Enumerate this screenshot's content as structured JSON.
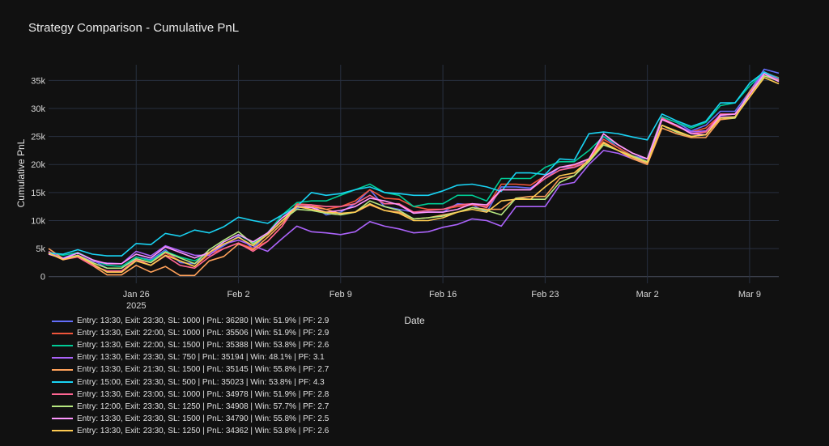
{
  "chart_data": {
    "type": "line",
    "title": "Strategy Comparison - Cumulative PnL",
    "xlabel": "Date",
    "ylabel": "Cumulative PnL",
    "ylim": [
      -1200,
      37800
    ],
    "y_ticks": [
      0,
      5000,
      10000,
      15000,
      20000,
      25000,
      30000,
      35000
    ],
    "y_tick_labels": [
      "0",
      "5k",
      "10k",
      "15k",
      "20k",
      "25k",
      "30k",
      "35k"
    ],
    "x_ticks": [
      "2025-01-26",
      "2025-02-02",
      "2025-02-09",
      "2025-02-16",
      "2025-02-23",
      "2025-03-02",
      "2025-03-09"
    ],
    "x_tick_labels": [
      "Jan 26",
      "Feb 2",
      "Feb 9",
      "Feb 16",
      "Feb 23",
      "Mar 2",
      "Mar 9"
    ],
    "x_tick_sublabel": "2025",
    "grid": true,
    "legend_position": "bottom-left",
    "x": [
      "2025-01-20",
      "2025-01-21",
      "2025-01-22",
      "2025-01-23",
      "2025-01-24",
      "2025-01-25",
      "2025-01-26",
      "2025-01-27",
      "2025-01-28",
      "2025-01-29",
      "2025-01-30",
      "2025-01-31",
      "2025-02-01",
      "2025-02-02",
      "2025-02-03",
      "2025-02-04",
      "2025-02-05",
      "2025-02-06",
      "2025-02-07",
      "2025-02-08",
      "2025-02-09",
      "2025-02-10",
      "2025-02-11",
      "2025-02-12",
      "2025-02-13",
      "2025-02-14",
      "2025-02-15",
      "2025-02-16",
      "2025-02-17",
      "2025-02-18",
      "2025-02-19",
      "2025-02-20",
      "2025-02-21",
      "2025-02-22",
      "2025-02-23",
      "2025-02-24",
      "2025-02-25",
      "2025-02-26",
      "2025-02-27",
      "2025-02-28",
      "2025-03-01",
      "2025-03-02",
      "2025-03-03",
      "2025-03-04",
      "2025-03-05",
      "2025-03-06",
      "2025-03-07",
      "2025-03-08",
      "2025-03-09",
      "2025-03-10",
      "2025-03-11"
    ],
    "series": [
      {
        "name": "Entry: 13:30, Exit: 23:30, SL: 1000 | PnL: 36280 | Win: 51.9% | PF: 2.9",
        "color": "#636efa",
        "values": [
          4200,
          3300,
          4300,
          3000,
          1500,
          1500,
          3500,
          3000,
          4800,
          2500,
          2300,
          4000,
          5500,
          7200,
          5000,
          7800,
          10500,
          12200,
          12800,
          11000,
          11500,
          13000,
          15500,
          12500,
          12000,
          11500,
          11500,
          11500,
          13000,
          12800,
          11500,
          16000,
          16000,
          15800,
          17500,
          19500,
          19500,
          21000,
          25000,
          23000,
          21500,
          21000,
          28500,
          27500,
          26000,
          27000,
          29500,
          29500,
          33000,
          37000,
          36300
        ]
      },
      {
        "name": "Entry: 13:30, Exit: 22:00, SL: 1000 | PnL: 35506 | Win: 51.9% | PF: 2.9",
        "color": "#ef553b",
        "values": [
          4500,
          3200,
          3500,
          2000,
          1000,
          800,
          3000,
          2500,
          4200,
          2800,
          1800,
          4000,
          5000,
          6000,
          5000,
          6300,
          9000,
          13000,
          12800,
          12000,
          12500,
          13500,
          15500,
          14000,
          13800,
          12500,
          12000,
          12000,
          12500,
          12800,
          12500,
          16500,
          16500,
          16300,
          18000,
          19500,
          19800,
          21000,
          24500,
          23000,
          21500,
          20500,
          28000,
          26800,
          25800,
          26500,
          28800,
          29000,
          32000,
          36300,
          35500
        ]
      },
      {
        "name": "Entry: 13:30, Exit: 22:00, SL: 1500 | PnL: 35388 | Win: 53.8% | PF: 2.6",
        "color": "#00cc96",
        "values": [
          4300,
          3800,
          4300,
          3000,
          2000,
          1800,
          3500,
          2800,
          4500,
          3500,
          2800,
          4300,
          6200,
          7500,
          6000,
          7800,
          11000,
          13200,
          13500,
          13500,
          14500,
          15500,
          16500,
          15000,
          14500,
          12500,
          13000,
          13000,
          14500,
          14500,
          13500,
          17500,
          17500,
          17500,
          19500,
          20500,
          20500,
          22500,
          25000,
          23500,
          22000,
          21000,
          28500,
          27500,
          26500,
          27500,
          30500,
          31000,
          34000,
          36500,
          35400
        ]
      },
      {
        "name": "Entry: 13:30, Exit: 23:30, SL: 750 | PnL: 35194 | Win: 48.1% | PF: 3.1",
        "color": "#ab63fa",
        "values": [
          4400,
          3200,
          3800,
          2700,
          2400,
          2300,
          4500,
          3700,
          5500,
          4600,
          3800,
          3800,
          5800,
          6500,
          5500,
          4500,
          6800,
          9000,
          8000,
          7800,
          7500,
          8000,
          9800,
          9000,
          8500,
          7800,
          8000,
          8800,
          9300,
          10300,
          10000,
          9000,
          12500,
          12500,
          12500,
          16300,
          16800,
          20000,
          22500,
          22000,
          21000,
          20300,
          28000,
          27000,
          25800,
          26000,
          28500,
          28500,
          33000,
          36500,
          35200
        ]
      },
      {
        "name": "Entry: 13:30, Exit: 21:30, SL: 1500 | PnL: 35145 | Win: 55.8% | PF: 2.7",
        "color": "#ffa15a",
        "values": [
          5000,
          3200,
          3500,
          2000,
          300,
          300,
          2000,
          800,
          1800,
          200,
          200,
          2800,
          3600,
          5800,
          4800,
          7000,
          9500,
          12500,
          12500,
          12000,
          11200,
          11500,
          12800,
          11800,
          11500,
          10300,
          10500,
          11000,
          11500,
          12300,
          12000,
          12000,
          14000,
          14300,
          14300,
          17500,
          18000,
          21000,
          24000,
          22500,
          21000,
          20000,
          26500,
          25500,
          24800,
          24800,
          28000,
          28300,
          33000,
          35800,
          35100
        ]
      },
      {
        "name": "Entry: 15:00, Exit: 23:30, SL: 500 | PnL: 35023 | Win: 53.8% | PF: 4.3",
        "color": "#19d3f3",
        "values": [
          4200,
          4000,
          4800,
          4000,
          3700,
          3700,
          5900,
          5700,
          7700,
          7200,
          8300,
          7800,
          8900,
          10600,
          10000,
          9500,
          11000,
          12500,
          15000,
          14500,
          14800,
          15500,
          16000,
          15000,
          14800,
          14500,
          14500,
          15300,
          16300,
          16500,
          16000,
          15200,
          18500,
          18500,
          18200,
          21000,
          20800,
          25500,
          25800,
          25500,
          24900,
          24400,
          29000,
          27800,
          26800,
          27700,
          31000,
          31000,
          34500,
          36500,
          35000
        ]
      },
      {
        "name": "Entry: 13:30, Exit: 23:00, SL: 1000 | PnL: 34978 | Win: 51.9% | PF: 2.8",
        "color": "#ff6692",
        "values": [
          4200,
          3000,
          3500,
          2000,
          1000,
          1000,
          3000,
          2000,
          3700,
          2000,
          1500,
          3500,
          5000,
          6000,
          4500,
          6300,
          9000,
          12800,
          12800,
          12500,
          12500,
          13000,
          14500,
          13000,
          13000,
          11500,
          11800,
          12000,
          12800,
          13000,
          12300,
          15500,
          15500,
          15500,
          17500,
          19000,
          19500,
          20500,
          25500,
          23500,
          22000,
          21000,
          28300,
          27000,
          25500,
          25800,
          29000,
          29000,
          32500,
          36200,
          35000
        ]
      },
      {
        "name": "Entry: 12:00, Exit: 23:30, SL: 1250 | PnL: 34908 | Win: 57.7% | PF: 2.7",
        "color": "#b6e880",
        "values": [
          4200,
          3100,
          3800,
          2500,
          1500,
          1500,
          3200,
          2500,
          4400,
          3300,
          2300,
          4800,
          6500,
          8000,
          5800,
          7500,
          10000,
          12000,
          11800,
          11300,
          11000,
          11500,
          13500,
          12500,
          11800,
          10300,
          10500,
          10800,
          11500,
          12300,
          11800,
          11000,
          14000,
          13800,
          13800,
          16800,
          18000,
          20500,
          23500,
          22500,
          21500,
          20500,
          27000,
          25800,
          25000,
          25300,
          28300,
          28300,
          32500,
          35800,
          34900
        ]
      },
      {
        "name": "Entry: 13:30, Exit: 23:30, SL: 1500 | PnL: 34790 | Win: 55.8% | PF: 2.5",
        "color": "#ff97ff",
        "values": [
          4000,
          3200,
          4200,
          3000,
          2300,
          2300,
          4000,
          3300,
          5300,
          4300,
          3300,
          4300,
          6200,
          7500,
          6200,
          7800,
          10500,
          12500,
          12300,
          11500,
          11800,
          12500,
          14000,
          13500,
          12800,
          11300,
          11500,
          11500,
          12000,
          13000,
          12800,
          15500,
          15500,
          15500,
          18000,
          19500,
          20000,
          21000,
          25500,
          23500,
          22000,
          21000,
          28000,
          27000,
          25500,
          25300,
          28800,
          29000,
          32500,
          36200,
          34800
        ]
      },
      {
        "name": "Entry: 13:30, Exit: 23:30, SL: 1250 | PnL: 34362 | Win: 53.8% | PF: 2.6",
        "color": "#fecb52",
        "values": [
          4200,
          3000,
          3700,
          2300,
          800,
          800,
          2800,
          2000,
          3800,
          2800,
          1800,
          4300,
          5800,
          7000,
          5500,
          7500,
          10000,
          12500,
          12000,
          11500,
          11300,
          11500,
          13000,
          11800,
          11300,
          10000,
          10000,
          10500,
          11500,
          12000,
          11500,
          13500,
          13800,
          13800,
          16000,
          18000,
          18500,
          20800,
          23800,
          22500,
          21300,
          20300,
          27000,
          26000,
          25000,
          25300,
          28300,
          28500,
          32000,
          35500,
          34400
        ]
      }
    ]
  }
}
